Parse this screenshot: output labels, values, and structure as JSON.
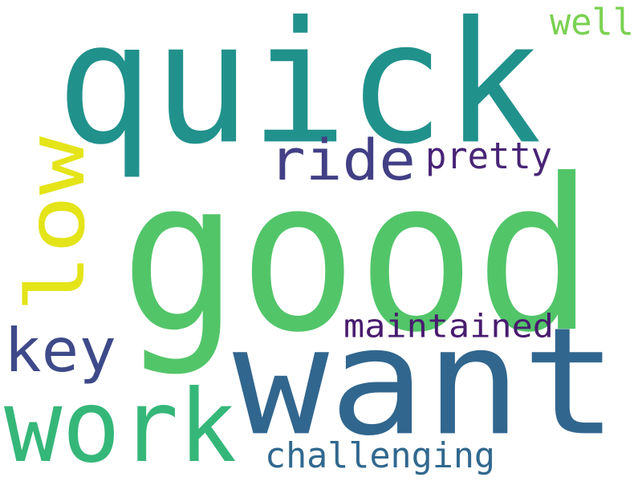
{
  "word_cloud": {
    "words": [
      {
        "text": "good",
        "color": "#52c569",
        "orientation": "horizontal"
      },
      {
        "text": "quick",
        "color": "#21918c",
        "orientation": "horizontal"
      },
      {
        "text": "want",
        "color": "#31668e",
        "orientation": "horizontal"
      },
      {
        "text": "work",
        "color": "#35b779",
        "orientation": "horizontal"
      },
      {
        "text": "low",
        "color": "#e4e419",
        "orientation": "vertical"
      },
      {
        "text": "ride",
        "color": "#423f85",
        "orientation": "horizontal"
      },
      {
        "text": "key",
        "color": "#3e4a89",
        "orientation": "horizontal"
      },
      {
        "text": "pretty",
        "color": "#482475",
        "orientation": "horizontal"
      },
      {
        "text": "maintained",
        "color": "#481c6e",
        "orientation": "horizontal"
      },
      {
        "text": "challenging",
        "color": "#31688e",
        "orientation": "horizontal"
      },
      {
        "text": "well",
        "color": "#7ad151",
        "orientation": "horizontal"
      }
    ]
  }
}
